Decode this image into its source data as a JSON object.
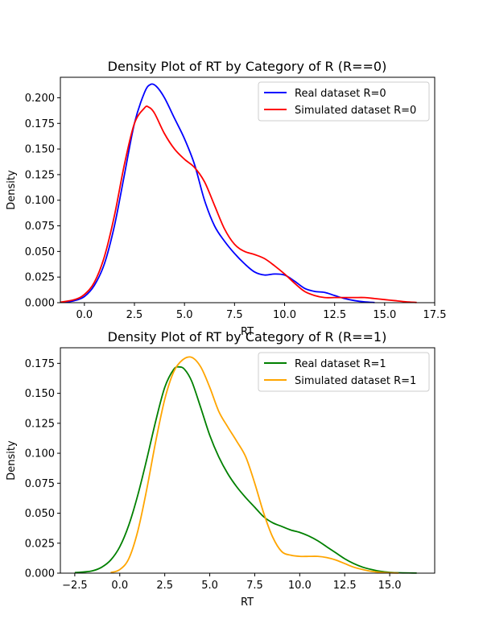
{
  "chart_data": [
    {
      "type": "line",
      "title": "Density Plot of RT by Category of R (R==0)",
      "xlabel": "RT",
      "ylabel": "Density",
      "xlim": [
        -1.2,
        17.5
      ],
      "ylim": [
        0,
        0.22
      ],
      "xticks": [
        {
          "v": 0,
          "label": "0.0"
        },
        {
          "v": 2.5,
          "label": "2.5"
        },
        {
          "v": 5,
          "label": "5.0"
        },
        {
          "v": 7.5,
          "label": "7.5"
        },
        {
          "v": 10,
          "label": "10.0"
        },
        {
          "v": 12.5,
          "label": "12.5"
        },
        {
          "v": 15,
          "label": "15.0"
        },
        {
          "v": 17.5,
          "label": "17.5"
        }
      ],
      "yticks": [
        {
          "v": 0,
          "label": "0.000"
        },
        {
          "v": 0.025,
          "label": "0.025"
        },
        {
          "v": 0.05,
          "label": "0.050"
        },
        {
          "v": 0.075,
          "label": "0.075"
        },
        {
          "v": 0.1,
          "label": "0.100"
        },
        {
          "v": 0.125,
          "label": "0.125"
        },
        {
          "v": 0.15,
          "label": "0.150"
        },
        {
          "v": 0.175,
          "label": "0.175"
        },
        {
          "v": 0.2,
          "label": "0.200"
        }
      ],
      "legend_position": "top-right",
      "grid": false,
      "series": [
        {
          "name": "Real dataset R=0",
          "color": "#0000ff",
          "x": [
            -1.0,
            -0.5,
            0.0,
            0.5,
            1.0,
            1.5,
            2.0,
            2.5,
            3.0,
            3.3,
            3.6,
            4.0,
            4.5,
            5.0,
            5.5,
            6.0,
            6.5,
            7.0,
            7.5,
            8.0,
            8.5,
            9.0,
            9.5,
            10.0,
            10.5,
            11.0,
            11.5,
            12.0,
            12.5,
            13.0,
            13.5,
            14.0,
            14.5
          ],
          "y": [
            0.0005,
            0.002,
            0.006,
            0.017,
            0.038,
            0.075,
            0.125,
            0.175,
            0.205,
            0.213,
            0.211,
            0.2,
            0.18,
            0.16,
            0.135,
            0.1,
            0.075,
            0.06,
            0.048,
            0.038,
            0.03,
            0.027,
            0.028,
            0.027,
            0.021,
            0.014,
            0.011,
            0.01,
            0.007,
            0.004,
            0.002,
            0.0008,
            0.0002
          ]
        },
        {
          "name": "Simulated dataset R=0",
          "color": "#ff0000",
          "x": [
            -1.2,
            -0.5,
            0.0,
            0.5,
            1.0,
            1.5,
            2.0,
            2.5,
            3.0,
            3.2,
            3.5,
            4.0,
            4.5,
            5.0,
            5.5,
            6.0,
            6.5,
            7.0,
            7.5,
            8.0,
            8.5,
            9.0,
            9.5,
            10.0,
            10.5,
            11.0,
            11.5,
            12.0,
            12.5,
            13.0,
            13.5,
            14.0,
            14.5,
            15.0,
            15.5,
            16.0,
            16.6
          ],
          "y": [
            0.0005,
            0.003,
            0.008,
            0.02,
            0.045,
            0.085,
            0.135,
            0.175,
            0.19,
            0.191,
            0.185,
            0.165,
            0.15,
            0.14,
            0.132,
            0.118,
            0.095,
            0.072,
            0.057,
            0.05,
            0.047,
            0.043,
            0.036,
            0.028,
            0.019,
            0.011,
            0.007,
            0.005,
            0.005,
            0.005,
            0.005,
            0.005,
            0.004,
            0.003,
            0.002,
            0.001,
            0.0002
          ]
        }
      ]
    },
    {
      "type": "line",
      "title": "Density Plot of RT by Category of R (R==1)",
      "xlabel": "RT",
      "ylabel": "Density",
      "xlim": [
        -3.3,
        17.5
      ],
      "ylim": [
        0,
        0.188
      ],
      "xticks": [
        {
          "v": -2.5,
          "label": "−2.5"
        },
        {
          "v": 0,
          "label": "0.0"
        },
        {
          "v": 2.5,
          "label": "2.5"
        },
        {
          "v": 5,
          "label": "5.0"
        },
        {
          "v": 7.5,
          "label": "7.5"
        },
        {
          "v": 10,
          "label": "10.0"
        },
        {
          "v": 12.5,
          "label": "12.5"
        },
        {
          "v": 15,
          "label": "15.0"
        }
      ],
      "yticks": [
        {
          "v": 0,
          "label": "0.000"
        },
        {
          "v": 0.025,
          "label": "0.025"
        },
        {
          "v": 0.05,
          "label": "0.050"
        },
        {
          "v": 0.075,
          "label": "0.075"
        },
        {
          "v": 0.1,
          "label": "0.100"
        },
        {
          "v": 0.125,
          "label": "0.125"
        },
        {
          "v": 0.15,
          "label": "0.150"
        },
        {
          "v": 0.175,
          "label": "0.175"
        }
      ],
      "legend_position": "top-right",
      "grid": false,
      "series": [
        {
          "name": "Real dataset R=1",
          "color": "#008000",
          "x": [
            -2.5,
            -2.0,
            -1.5,
            -1.0,
            -0.5,
            0.0,
            0.5,
            1.0,
            1.5,
            2.0,
            2.5,
            3.0,
            3.3,
            3.6,
            4.0,
            4.5,
            5.0,
            5.5,
            6.0,
            6.5,
            7.0,
            7.5,
            8.0,
            8.5,
            9.0,
            9.5,
            10.0,
            10.5,
            11.0,
            11.5,
            12.0,
            12.5,
            13.0,
            13.5,
            14.0,
            14.5,
            15.0,
            15.5,
            16.5
          ],
          "y": [
            0.0005,
            0.001,
            0.002,
            0.005,
            0.011,
            0.022,
            0.04,
            0.065,
            0.095,
            0.127,
            0.155,
            0.17,
            0.172,
            0.17,
            0.16,
            0.138,
            0.115,
            0.097,
            0.083,
            0.072,
            0.063,
            0.055,
            0.047,
            0.042,
            0.039,
            0.036,
            0.034,
            0.031,
            0.027,
            0.022,
            0.017,
            0.012,
            0.008,
            0.005,
            0.003,
            0.0015,
            0.0007,
            0.0003,
            0.0001
          ]
        },
        {
          "name": "Simulated dataset R=1",
          "color": "#ffa500",
          "x": [
            -0.5,
            0.0,
            0.5,
            1.0,
            1.5,
            2.0,
            2.5,
            3.0,
            3.5,
            4.0,
            4.5,
            5.0,
            5.5,
            6.0,
            6.5,
            7.0,
            7.5,
            8.0,
            8.5,
            9.0,
            9.5,
            10.0,
            10.5,
            11.0,
            11.5,
            12.0,
            12.5,
            13.0,
            13.5,
            14.0,
            14.5,
            15.0,
            15.5
          ],
          "y": [
            0.0005,
            0.003,
            0.012,
            0.035,
            0.07,
            0.11,
            0.145,
            0.168,
            0.178,
            0.18,
            0.172,
            0.155,
            0.135,
            0.122,
            0.11,
            0.097,
            0.075,
            0.05,
            0.03,
            0.018,
            0.015,
            0.014,
            0.014,
            0.014,
            0.013,
            0.011,
            0.008,
            0.005,
            0.003,
            0.0015,
            0.0007,
            0.0003,
            0.0001
          ]
        }
      ]
    }
  ]
}
